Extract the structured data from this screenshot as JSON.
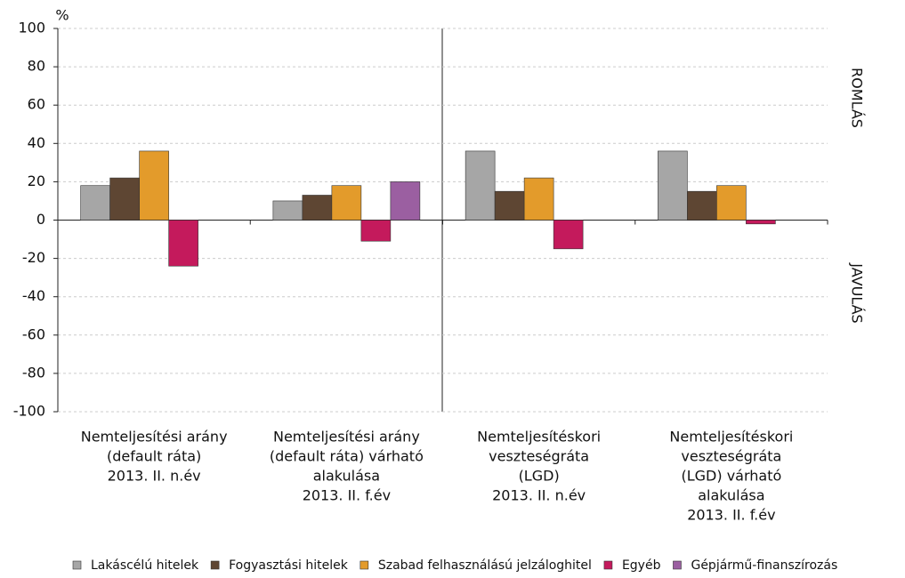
{
  "chart_data": {
    "type": "bar",
    "y_unit": "%",
    "upper_label": "ROMLÁS",
    "lower_label": "JAVULÁS",
    "categories": [
      [
        "Nemteljesítési arány",
        "(default ráta)",
        "2013. II. n.év"
      ],
      [
        "Nemteljesítési arány",
        "(default ráta) várható",
        "alakulása",
        "2013. II. f.év"
      ],
      [
        "Nemteljesítéskori",
        "veszteségráta",
        "(LGD)",
        "2013. II. n.év"
      ],
      [
        "Nemteljesítéskori",
        "veszteségráta",
        "(LGD) várható",
        "alakulása",
        "2013. II. f.év"
      ]
    ],
    "series": [
      {
        "name": "Lakáscélú hitelek",
        "color": "#a6a6a6",
        "values": [
          18,
          10,
          36,
          36
        ]
      },
      {
        "name": "Fogyasztási hitelek",
        "color": "#5e4633",
        "values": [
          22,
          13,
          15,
          15
        ]
      },
      {
        "name": "Szabad felhasználású jelzáloghitel",
        "color": "#e39b2b",
        "values": [
          36,
          18,
          22,
          18
        ]
      },
      {
        "name": "Egyéb",
        "color": "#c41a5c",
        "values": [
          -24,
          -11,
          -15,
          -2
        ]
      },
      {
        "name": "Gépjármű-finanszírozás",
        "color": "#9b5fa1",
        "values": [
          null,
          20,
          null,
          null
        ]
      }
    ],
    "ylim": [
      -100,
      100
    ],
    "yticks": [
      -100,
      -80,
      -60,
      -40,
      -20,
      0,
      20,
      40,
      60,
      80,
      100
    ],
    "grid": true
  }
}
